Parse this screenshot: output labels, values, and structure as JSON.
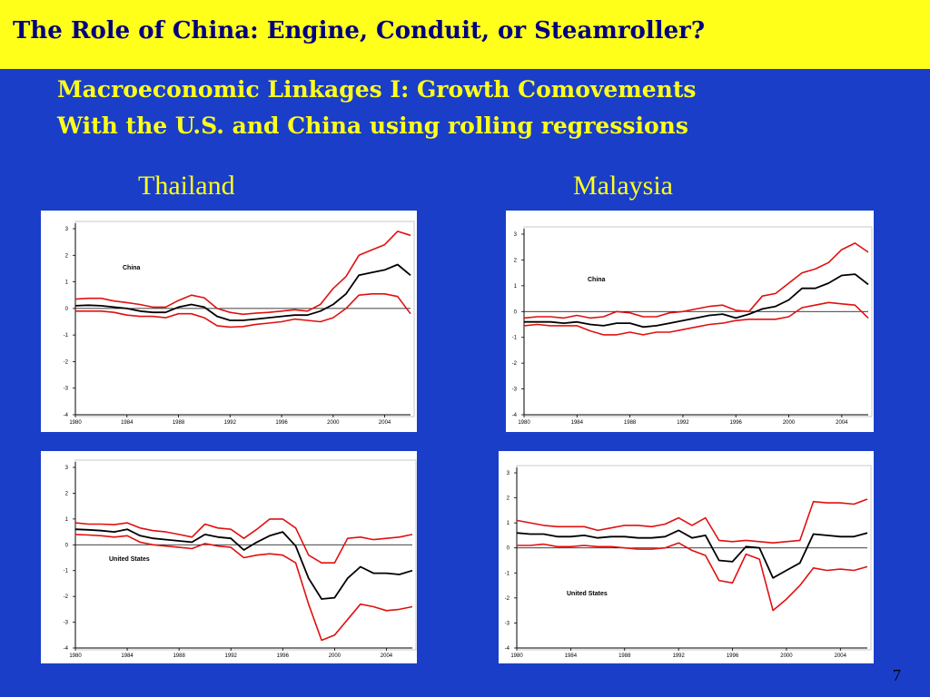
{
  "slide": {
    "title": "The Role of China:  Engine, Conduit, or Steamroller?",
    "subtitle_line1": "Macroeconomic Linkages I:  Growth Comovements",
    "subtitle_line2": "With the U.S. and China using rolling regressions",
    "country_left": "Thailand",
    "country_right": "Malaysia",
    "page_number": "7",
    "colors": {
      "background": "#1a3ec8",
      "title_bar": "#ffff1a",
      "title_text": "#000080",
      "subtitle_text": "#ffff1a",
      "estimate_line": "#000000",
      "band_line": "#e01010"
    }
  },
  "chart_data": [
    {
      "type": "line",
      "annotation": "China",
      "x": [
        1980,
        1981,
        1982,
        1983,
        1984,
        1985,
        1986,
        1987,
        1988,
        1989,
        1990,
        1991,
        1992,
        1993,
        1994,
        1995,
        1996,
        1997,
        1998,
        1999,
        2000,
        2001,
        2002,
        2003,
        2004,
        2005,
        2006
      ],
      "series": [
        {
          "values": [
            0.35,
            0.38,
            0.38,
            0.28,
            0.22,
            0.15,
            0.05,
            0.05,
            0.3,
            0.5,
            0.4,
            0.0,
            -0.15,
            -0.22,
            -0.18,
            -0.15,
            -0.1,
            -0.05,
            -0.1,
            0.15,
            0.75,
            1.2,
            2.0,
            2.2,
            2.4,
            2.9,
            2.75
          ]
        },
        {
          "values": [
            0.1,
            0.12,
            0.1,
            0.05,
            0.0,
            -0.1,
            -0.15,
            -0.15,
            0.05,
            0.15,
            0.05,
            -0.3,
            -0.45,
            -0.45,
            -0.4,
            -0.35,
            -0.3,
            -0.25,
            -0.25,
            -0.1,
            0.15,
            0.55,
            1.25,
            1.35,
            1.45,
            1.65,
            1.25
          ]
        },
        {
          "values": [
            -0.1,
            -0.1,
            -0.1,
            -0.15,
            -0.25,
            -0.3,
            -0.3,
            -0.35,
            -0.2,
            -0.2,
            -0.35,
            -0.65,
            -0.7,
            -0.68,
            -0.6,
            -0.55,
            -0.5,
            -0.4,
            -0.45,
            -0.5,
            -0.35,
            0.0,
            0.5,
            0.55,
            0.55,
            0.45,
            -0.2
          ]
        }
      ],
      "ylim": [
        -4,
        3
      ],
      "xticks": [
        "1980",
        "1984",
        "1988",
        "1992",
        "1996",
        "2000",
        "2004"
      ],
      "yticks": [
        "3",
        "2",
        "1",
        "0",
        "-1",
        "-2",
        "-3",
        "-4"
      ]
    },
    {
      "type": "line",
      "annotation": "China",
      "x": [
        1980,
        1981,
        1982,
        1983,
        1984,
        1985,
        1986,
        1987,
        1988,
        1989,
        1990,
        1991,
        1992,
        1993,
        1994,
        1995,
        1996,
        1997,
        1998,
        1999,
        2000,
        2001,
        2002,
        2003,
        2004,
        2005,
        2006
      ],
      "series": [
        {
          "values": [
            -0.25,
            -0.2,
            -0.2,
            -0.25,
            -0.15,
            -0.25,
            -0.2,
            0.0,
            -0.05,
            -0.2,
            -0.2,
            -0.05,
            0.0,
            0.1,
            0.2,
            0.25,
            0.05,
            0.0,
            0.6,
            0.7,
            1.1,
            1.5,
            1.65,
            1.9,
            2.4,
            2.65,
            2.3
          ]
        },
        {
          "values": [
            -0.4,
            -0.4,
            -0.4,
            -0.45,
            -0.4,
            -0.5,
            -0.55,
            -0.45,
            -0.45,
            -0.6,
            -0.55,
            -0.45,
            -0.35,
            -0.25,
            -0.15,
            -0.1,
            -0.25,
            -0.1,
            0.1,
            0.2,
            0.45,
            0.9,
            0.9,
            1.1,
            1.4,
            1.45,
            1.05
          ]
        },
        {
          "values": [
            -0.55,
            -0.5,
            -0.55,
            -0.55,
            -0.55,
            -0.75,
            -0.9,
            -0.9,
            -0.8,
            -0.9,
            -0.8,
            -0.8,
            -0.7,
            -0.6,
            -0.5,
            -0.45,
            -0.35,
            -0.3,
            -0.3,
            -0.3,
            -0.2,
            0.15,
            0.25,
            0.35,
            0.3,
            0.25,
            -0.25
          ]
        }
      ],
      "ylim": [
        -4,
        3
      ],
      "xticks": [
        "1980",
        "1984",
        "1988",
        "1992",
        "1996",
        "2000",
        "2004"
      ],
      "yticks": [
        "3",
        "2",
        "1",
        "0",
        "-1",
        "-2",
        "-3",
        "-4"
      ]
    },
    {
      "type": "line",
      "annotation": "United States",
      "x": [
        1980,
        1981,
        1982,
        1983,
        1984,
        1985,
        1986,
        1987,
        1988,
        1989,
        1990,
        1991,
        1992,
        1993,
        1994,
        1995,
        1996,
        1997,
        1998,
        1999,
        2000,
        2001,
        2002,
        2003,
        2004,
        2005,
        2006
      ],
      "series": [
        {
          "values": [
            0.85,
            0.8,
            0.8,
            0.78,
            0.85,
            0.65,
            0.55,
            0.5,
            0.4,
            0.3,
            0.8,
            0.65,
            0.6,
            0.25,
            0.6,
            1.0,
            1.0,
            0.65,
            -0.4,
            -0.7,
            -0.7,
            0.25,
            0.3,
            0.2,
            0.25,
            0.3,
            0.4
          ]
        },
        {
          "values": [
            0.6,
            0.58,
            0.55,
            0.5,
            0.6,
            0.35,
            0.25,
            0.2,
            0.15,
            0.1,
            0.4,
            0.3,
            0.25,
            -0.2,
            0.1,
            0.35,
            0.5,
            -0.05,
            -1.3,
            -2.1,
            -2.05,
            -1.3,
            -0.85,
            -1.1,
            -1.1,
            -1.15,
            -1.0
          ]
        },
        {
          "values": [
            0.4,
            0.38,
            0.35,
            0.3,
            0.35,
            0.1,
            0.0,
            -0.05,
            -0.1,
            -0.15,
            0.05,
            -0.05,
            -0.1,
            -0.5,
            -0.4,
            -0.35,
            -0.4,
            -0.7,
            -2.3,
            -3.7,
            -3.5,
            -2.9,
            -2.3,
            -2.4,
            -2.55,
            -2.5,
            -2.4
          ]
        }
      ],
      "ylim": [
        -4,
        3
      ],
      "xticks": [
        "1980",
        "1984",
        "1988",
        "1992",
        "1996",
        "2000",
        "2004"
      ],
      "yticks": [
        "3",
        "2",
        "1",
        "0",
        "-1",
        "-2",
        "-3",
        "-4"
      ]
    },
    {
      "type": "line",
      "annotation": "United States",
      "x": [
        1980,
        1981,
        1982,
        1983,
        1984,
        1985,
        1986,
        1987,
        1988,
        1989,
        1990,
        1991,
        1992,
        1993,
        1994,
        1995,
        1996,
        1997,
        1998,
        1999,
        2000,
        2001,
        2002,
        2003,
        2004,
        2005,
        2006
      ],
      "series": [
        {
          "values": [
            1.1,
            1.0,
            0.9,
            0.85,
            0.85,
            0.85,
            0.7,
            0.8,
            0.9,
            0.9,
            0.85,
            0.95,
            1.2,
            0.9,
            1.2,
            0.3,
            0.25,
            0.3,
            0.25,
            0.2,
            0.25,
            0.3,
            1.85,
            1.8,
            1.8,
            1.75,
            1.95
          ]
        },
        {
          "values": [
            0.6,
            0.55,
            0.55,
            0.45,
            0.45,
            0.5,
            0.4,
            0.45,
            0.45,
            0.4,
            0.4,
            0.45,
            0.7,
            0.4,
            0.5,
            -0.5,
            -0.55,
            0.05,
            0.0,
            -1.2,
            -0.9,
            -0.6,
            0.55,
            0.5,
            0.45,
            0.45,
            0.6
          ]
        },
        {
          "values": [
            0.1,
            0.1,
            0.15,
            0.05,
            0.05,
            0.1,
            0.05,
            0.05,
            0.0,
            -0.05,
            -0.05,
            0.0,
            0.2,
            -0.1,
            -0.3,
            -1.3,
            -1.4,
            -0.25,
            -0.45,
            -2.5,
            -2.05,
            -1.5,
            -0.8,
            -0.9,
            -0.85,
            -0.9,
            -0.75
          ]
        }
      ],
      "ylim": [
        -4,
        3
      ],
      "xticks": [
        "1980",
        "1984",
        "1988",
        "1992",
        "1996",
        "2000",
        "2004"
      ],
      "yticks": [
        "3",
        "2",
        "1",
        "0",
        "-1",
        "-2",
        "-3",
        "-4"
      ]
    }
  ]
}
